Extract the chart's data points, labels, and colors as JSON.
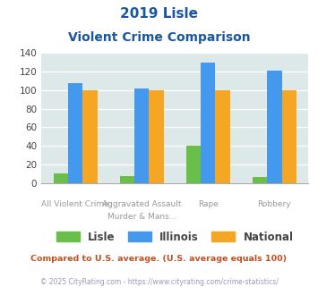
{
  "title_line1": "2019 Lisle",
  "title_line2": "Violent Crime Comparison",
  "top_labels": [
    "",
    "Aggravated Assault",
    "",
    ""
  ],
  "bottom_labels": [
    "All Violent Crime",
    "Murder & Mans...",
    "Rape",
    "Robbery"
  ],
  "lisle": [
    10,
    7,
    40,
    6
  ],
  "illinois": [
    108,
    102,
    130,
    121
  ],
  "national": [
    100,
    100,
    100,
    100
  ],
  "lisle_color": "#6abf4b",
  "illinois_color": "#4499ee",
  "national_color": "#f5a623",
  "bg_color": "#dce9e8",
  "ylim": [
    0,
    140
  ],
  "yticks": [
    0,
    20,
    40,
    60,
    80,
    100,
    120,
    140
  ],
  "title_color": "#1a56a0",
  "footnote1": "Compared to U.S. average. (U.S. average equals 100)",
  "footnote2": "© 2025 CityRating.com - https://www.cityrating.com/crime-statistics/",
  "footnote1_color": "#c05020",
  "footnote2_color": "#9999bb"
}
